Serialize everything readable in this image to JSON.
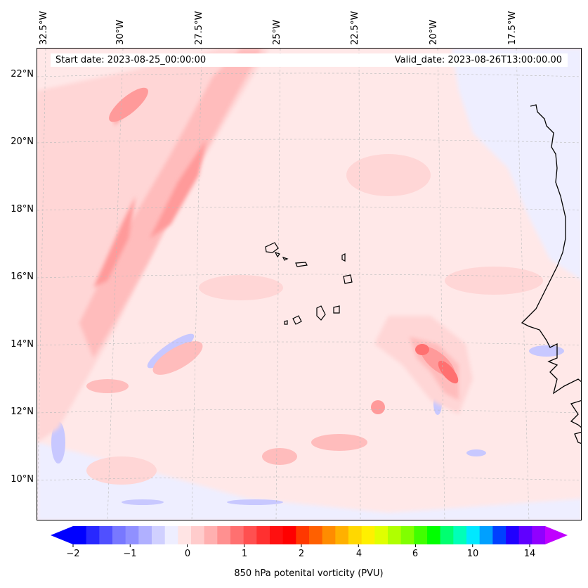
{
  "header": {
    "start_date": "Start date: 2023-08-25_00:00:00",
    "valid_date": "Valid_date: 2023-08-26T13:00:00.00"
  },
  "axes": {
    "lon_labels": [
      "32.5°W",
      "30°W",
      "27.5°W",
      "25°W",
      "22.5°W",
      "20°W",
      "17.5°W"
    ],
    "lat_labels": [
      "22°N",
      "20°N",
      "18°N",
      "16°N",
      "14°N",
      "12°N",
      "10°N"
    ]
  },
  "colorbar": {
    "label": "850 hPa potenital vorticity (PVU)",
    "ticks": [
      "−2",
      "−1",
      "0",
      "1",
      "2",
      "4",
      "6",
      "10",
      "14"
    ],
    "colors": [
      "#0000ff",
      "#2828ff",
      "#5050ff",
      "#7878ff",
      "#9090ff",
      "#b0b0ff",
      "#d0d0ff",
      "#eeeeff",
      "#ffe4e4",
      "#ffcccc",
      "#ffb0b0",
      "#ff9090",
      "#ff7070",
      "#ff5050",
      "#ff3030",
      "#ff1010",
      "#ff0000",
      "#ff3800",
      "#ff6000",
      "#ff8c00",
      "#ffb000",
      "#ffd800",
      "#fff000",
      "#e0ff00",
      "#b0ff00",
      "#80ff00",
      "#40ff00",
      "#00ff00",
      "#00ff70",
      "#00ffb8",
      "#00e8ff",
      "#00a0ff",
      "#0040ff",
      "#2000ff",
      "#6000ff",
      "#9000ff"
    ],
    "under_color": "#0000ff",
    "over_color": "#c000ff"
  },
  "map_colors": {
    "background": "#ffe8e8",
    "light_pink": "#ffd6d6",
    "mid_pink": "#ffbcbc",
    "dark_pink": "#ff9a9a",
    "red": "#ff7070",
    "light_blue": "#eeeeff",
    "blue": "#c8c8ff"
  }
}
